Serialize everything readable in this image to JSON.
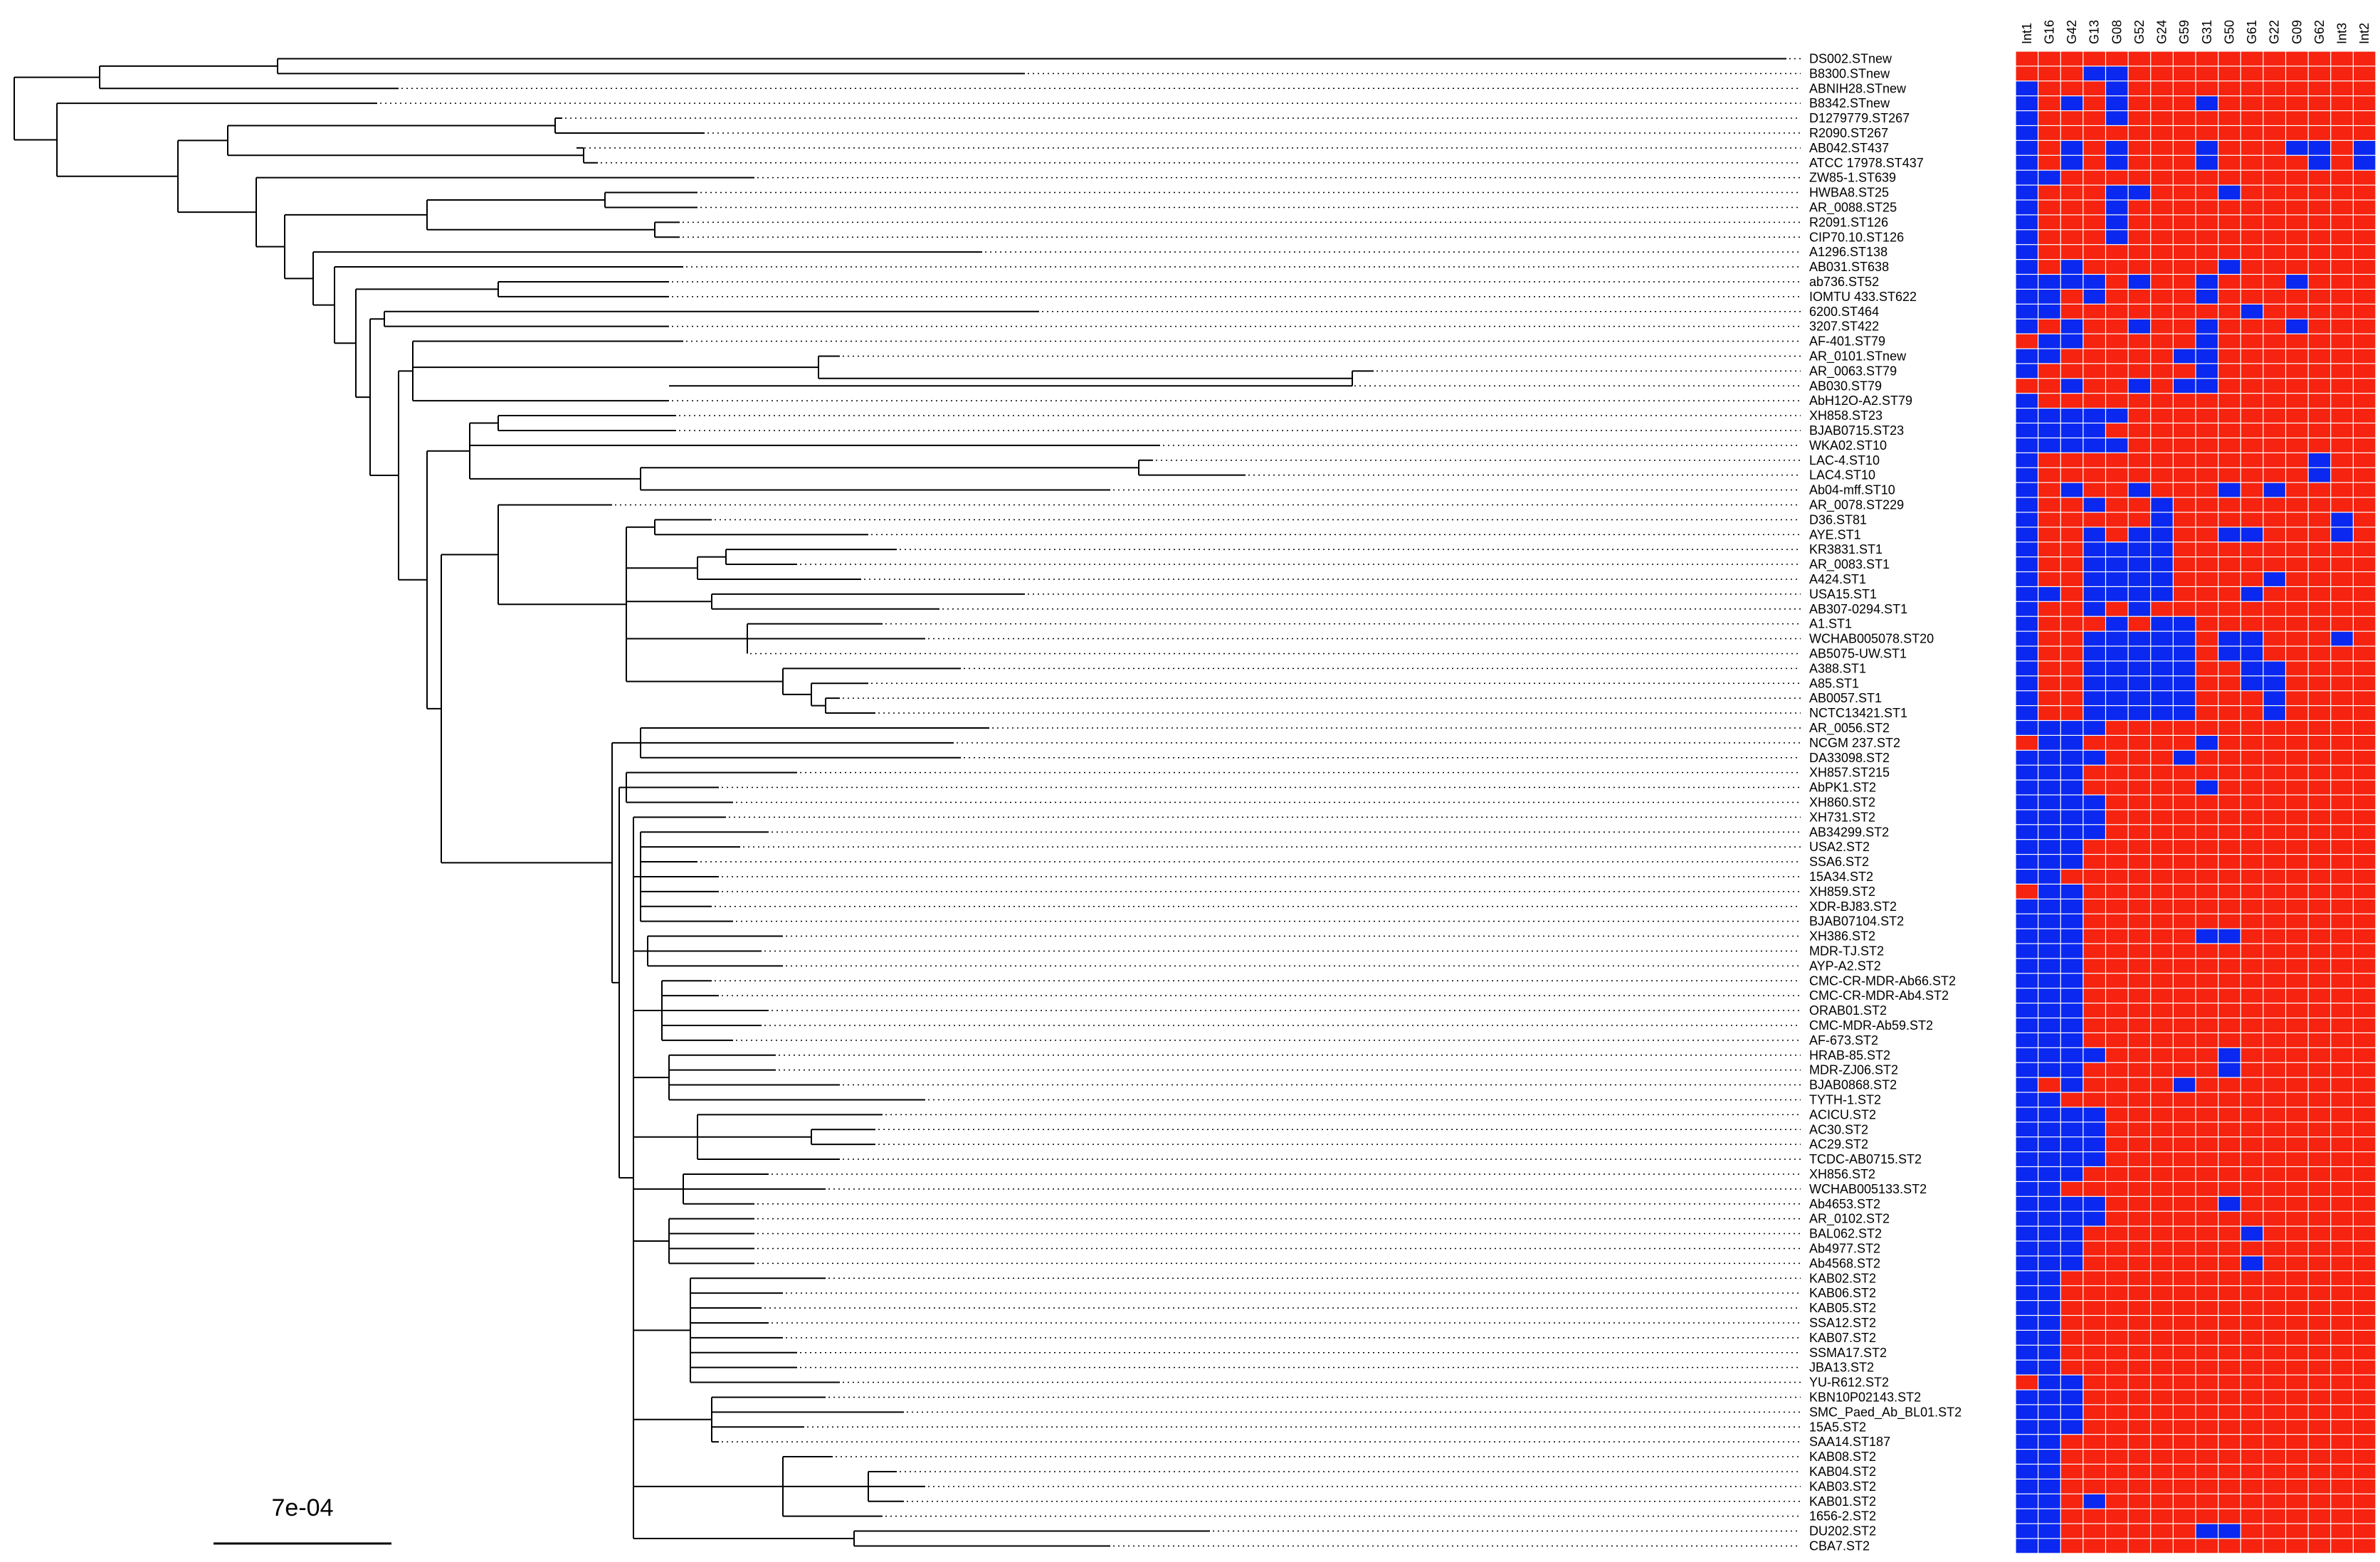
{
  "figure": {
    "type": "phylogenetic-tree-with-presence-heatmap",
    "scale_bar_label": "7e-04",
    "colors": {
      "present": "#0a28f0",
      "absent": "#f5230f",
      "grid": "#ffffff",
      "branch": "#000000"
    }
  },
  "columns": [
    "Int1",
    "G16",
    "G42",
    "G13",
    "G08",
    "G52",
    "G24",
    "G59",
    "G31",
    "G50",
    "G61",
    "G22",
    "G09",
    "G62",
    "Int3",
    "Int2"
  ],
  "taxa": [
    "DS002.STnew",
    "B8300.STnew",
    "ABNIH28.STnew",
    "B8342.STnew",
    "D1279779.ST267",
    "R2090.ST267",
    "AB042.ST437",
    "ATCC 17978.ST437",
    "ZW85-1.ST639",
    "HWBA8.ST25",
    "AR_0088.ST25",
    "R2091.ST126",
    "CIP70.10.ST126",
    "A1296.ST138",
    "AB031.ST638",
    "ab736.ST52",
    "IOMTU 433.ST622",
    "6200.ST464",
    "3207.ST422",
    "AF-401.ST79",
    "AR_0101.STnew",
    "AR_0063.ST79",
    "AB030.ST79",
    "AbH12O-A2.ST79",
    "XH858.ST23",
    "BJAB0715.ST23",
    "WKA02.ST10",
    "LAC-4.ST10",
    "LAC4.ST10",
    "Ab04-mff.ST10",
    "AR_0078.ST229",
    "D36.ST81",
    "AYE.ST1",
    "KR3831.ST1",
    "AR_0083.ST1",
    "A424.ST1",
    "USA15.ST1",
    "AB307-0294.ST1",
    "A1.ST1",
    "WCHAB005078.ST20",
    "AB5075-UW.ST1",
    "A388.ST1",
    "A85.ST1",
    "AB0057.ST1",
    "NCTC13421.ST1",
    "AR_0056.ST2",
    "NCGM 237.ST2",
    "DA33098.ST2",
    "XH857.ST215",
    "AbPK1.ST2",
    "XH860.ST2",
    "XH731.ST2",
    "AB34299.ST2",
    "USA2.ST2",
    "SSA6.ST2",
    "15A34.ST2",
    "XH859.ST2",
    "XDR-BJ83.ST2",
    "BJAB07104.ST2",
    "XH386.ST2",
    "MDR-TJ.ST2",
    "AYP-A2.ST2",
    "CMC-CR-MDR-Ab66.ST2",
    "CMC-CR-MDR-Ab4.ST2",
    "ORAB01.ST2",
    "CMC-MDR-Ab59.ST2",
    "AF-673.ST2",
    "HRAB-85.ST2",
    "MDR-ZJ06.ST2",
    "BJAB0868.ST2",
    "TYTH-1.ST2",
    "ACICU.ST2",
    "AC30.ST2",
    "AC29.ST2",
    "TCDC-AB0715.ST2",
    "XH856.ST2",
    "WCHAB005133.ST2",
    "Ab4653.ST2",
    "AR_0102.ST2",
    "BAL062.ST2",
    "Ab4977.ST2",
    "Ab4568.ST2",
    "KAB02.ST2",
    "KAB06.ST2",
    "KAB05.ST2",
    "SSA12.ST2",
    "KAB07.ST2",
    "SSMA17.ST2",
    "JBA13.ST2",
    "YU-R612.ST2",
    "KBN10P02143.ST2",
    "SMC_Paed_Ab_BL01.ST2",
    "15A5.ST2",
    "SAA14.ST187",
    "KAB08.ST2",
    "KAB04.ST2",
    "KAB03.ST2",
    "KAB01.ST2",
    "1656-2.ST2",
    "DU202.ST2",
    "CBA7.ST2"
  ],
  "presence_matrix": [
    [
      0,
      0,
      0,
      0,
      0,
      0,
      0,
      0,
      0,
      0,
      0,
      0,
      0,
      0,
      0,
      0
    ],
    [
      0,
      0,
      0,
      1,
      1,
      0,
      0,
      0,
      0,
      0,
      0,
      0,
      0,
      0,
      0,
      0
    ],
    [
      1,
      0,
      0,
      0,
      1,
      0,
      0,
      0,
      0,
      0,
      0,
      0,
      0,
      0,
      0,
      0
    ],
    [
      1,
      0,
      1,
      0,
      1,
      0,
      0,
      0,
      1,
      0,
      0,
      0,
      0,
      0,
      0,
      0
    ],
    [
      1,
      0,
      0,
      0,
      1,
      0,
      0,
      0,
      0,
      0,
      0,
      0,
      0,
      0,
      0,
      0
    ],
    [
      1,
      0,
      0,
      0,
      0,
      0,
      0,
      0,
      0,
      0,
      0,
      0,
      0,
      0,
      0,
      0
    ],
    [
      1,
      0,
      1,
      0,
      1,
      0,
      0,
      0,
      1,
      0,
      0,
      0,
      1,
      1,
      0,
      1
    ],
    [
      1,
      0,
      1,
      0,
      1,
      0,
      0,
      0,
      1,
      0,
      0,
      0,
      0,
      1,
      0,
      1
    ],
    [
      1,
      1,
      0,
      0,
      0,
      0,
      0,
      0,
      0,
      0,
      0,
      0,
      0,
      0,
      0,
      0
    ],
    [
      1,
      0,
      0,
      0,
      1,
      1,
      0,
      0,
      0,
      1,
      0,
      0,
      0,
      0,
      0,
      0
    ],
    [
      1,
      0,
      0,
      0,
      1,
      0,
      0,
      0,
      0,
      0,
      0,
      0,
      0,
      0,
      0,
      0
    ],
    [
      1,
      0,
      0,
      0,
      1,
      0,
      0,
      0,
      0,
      0,
      0,
      0,
      0,
      0,
      0,
      0
    ],
    [
      1,
      0,
      0,
      0,
      1,
      0,
      0,
      0,
      0,
      0,
      0,
      0,
      0,
      0,
      0,
      0
    ],
    [
      1,
      0,
      0,
      0,
      0,
      0,
      0,
      0,
      0,
      0,
      0,
      0,
      0,
      0,
      0,
      0
    ],
    [
      1,
      0,
      1,
      0,
      0,
      0,
      0,
      0,
      0,
      1,
      0,
      0,
      0,
      0,
      0,
      0
    ],
    [
      1,
      1,
      1,
      1,
      0,
      1,
      0,
      0,
      1,
      0,
      0,
      0,
      1,
      0,
      0,
      0
    ],
    [
      1,
      1,
      0,
      1,
      0,
      0,
      0,
      0,
      1,
      0,
      0,
      0,
      0,
      0,
      0,
      0
    ],
    [
      1,
      1,
      0,
      0,
      0,
      0,
      0,
      0,
      0,
      0,
      1,
      0,
      0,
      0,
      0,
      0
    ],
    [
      1,
      0,
      1,
      0,
      0,
      1,
      0,
      0,
      1,
      0,
      0,
      0,
      1,
      0,
      0,
      0
    ],
    [
      0,
      1,
      1,
      0,
      0,
      0,
      0,
      0,
      1,
      0,
      0,
      0,
      0,
      0,
      0,
      0
    ],
    [
      1,
      1,
      0,
      0,
      0,
      0,
      0,
      1,
      1,
      0,
      0,
      0,
      0,
      0,
      0,
      0
    ],
    [
      1,
      0,
      0,
      0,
      0,
      0,
      0,
      0,
      1,
      0,
      0,
      0,
      0,
      0,
      0,
      0
    ],
    [
      0,
      0,
      1,
      0,
      0,
      1,
      0,
      1,
      1,
      0,
      0,
      0,
      0,
      0,
      0,
      0
    ],
    [
      1,
      0,
      0,
      0,
      0,
      0,
      0,
      0,
      0,
      0,
      0,
      0,
      0,
      0,
      0,
      0
    ],
    [
      1,
      1,
      1,
      1,
      1,
      0,
      0,
      0,
      0,
      0,
      0,
      0,
      0,
      0,
      0,
      0
    ],
    [
      1,
      1,
      1,
      1,
      0,
      0,
      0,
      0,
      0,
      0,
      0,
      0,
      0,
      0,
      0,
      0
    ],
    [
      1,
      1,
      1,
      1,
      1,
      0,
      0,
      0,
      0,
      0,
      0,
      0,
      0,
      0,
      0,
      0
    ],
    [
      1,
      0,
      0,
      0,
      0,
      0,
      0,
      0,
      0,
      0,
      0,
      0,
      0,
      1,
      0,
      0
    ],
    [
      1,
      0,
      0,
      0,
      0,
      0,
      0,
      0,
      0,
      0,
      0,
      0,
      0,
      1,
      0,
      0
    ],
    [
      1,
      0,
      1,
      0,
      0,
      1,
      0,
      0,
      0,
      1,
      0,
      1,
      0,
      0,
      0,
      0
    ],
    [
      1,
      0,
      0,
      1,
      0,
      0,
      1,
      0,
      0,
      0,
      0,
      0,
      0,
      0,
      0,
      0
    ],
    [
      1,
      0,
      0,
      0,
      0,
      0,
      1,
      0,
      0,
      0,
      0,
      0,
      0,
      0,
      1,
      0
    ],
    [
      1,
      0,
      0,
      1,
      0,
      1,
      1,
      0,
      0,
      1,
      1,
      0,
      0,
      0,
      1,
      0
    ],
    [
      1,
      0,
      0,
      1,
      1,
      1,
      1,
      0,
      0,
      0,
      0,
      0,
      0,
      0,
      0,
      0
    ],
    [
      1,
      0,
      0,
      1,
      1,
      1,
      1,
      0,
      0,
      0,
      0,
      0,
      0,
      0,
      0,
      0
    ],
    [
      1,
      0,
      0,
      1,
      1,
      1,
      1,
      0,
      0,
      0,
      0,
      1,
      0,
      0,
      0,
      0
    ],
    [
      1,
      1,
      0,
      1,
      1,
      1,
      1,
      0,
      0,
      0,
      1,
      0,
      0,
      0,
      0,
      0
    ],
    [
      1,
      0,
      0,
      1,
      0,
      1,
      0,
      0,
      0,
      0,
      0,
      0,
      0,
      0,
      0,
      0
    ],
    [
      1,
      0,
      0,
      0,
      1,
      0,
      1,
      1,
      0,
      0,
      0,
      0,
      0,
      0,
      0,
      0
    ],
    [
      1,
      0,
      0,
      1,
      1,
      1,
      1,
      1,
      0,
      1,
      1,
      0,
      0,
      0,
      1,
      0
    ],
    [
      1,
      0,
      0,
      1,
      1,
      1,
      1,
      1,
      0,
      1,
      1,
      0,
      0,
      0,
      0,
      0
    ],
    [
      1,
      0,
      0,
      1,
      1,
      1,
      1,
      1,
      0,
      0,
      1,
      1,
      0,
      0,
      0,
      0
    ],
    [
      1,
      0,
      0,
      1,
      1,
      1,
      1,
      1,
      0,
      0,
      1,
      1,
      0,
      0,
      0,
      0
    ],
    [
      1,
      0,
      0,
      1,
      1,
      1,
      1,
      1,
      0,
      0,
      0,
      1,
      0,
      0,
      0,
      0
    ],
    [
      1,
      0,
      0,
      1,
      1,
      1,
      1,
      1,
      0,
      0,
      0,
      1,
      0,
      0,
      0,
      0
    ],
    [
      1,
      1,
      1,
      1,
      0,
      0,
      0,
      0,
      0,
      0,
      0,
      0,
      0,
      0,
      0,
      0
    ],
    [
      0,
      1,
      1,
      0,
      0,
      0,
      0,
      0,
      1,
      0,
      0,
      0,
      0,
      0,
      0,
      0
    ],
    [
      1,
      1,
      1,
      1,
      0,
      0,
      0,
      1,
      0,
      0,
      0,
      0,
      0,
      0,
      0,
      0
    ],
    [
      1,
      1,
      1,
      0,
      0,
      0,
      0,
      0,
      0,
      0,
      0,
      0,
      0,
      0,
      0,
      0
    ],
    [
      1,
      1,
      1,
      0,
      0,
      0,
      0,
      0,
      1,
      0,
      0,
      0,
      0,
      0,
      0,
      0
    ],
    [
      1,
      1,
      1,
      1,
      0,
      0,
      0,
      0,
      0,
      0,
      0,
      0,
      0,
      0,
      0,
      0
    ],
    [
      1,
      1,
      1,
      1,
      0,
      0,
      0,
      0,
      0,
      0,
      0,
      0,
      0,
      0,
      0,
      0
    ],
    [
      1,
      1,
      1,
      1,
      0,
      0,
      0,
      0,
      0,
      0,
      0,
      0,
      0,
      0,
      0,
      0
    ],
    [
      1,
      1,
      1,
      0,
      0,
      0,
      0,
      0,
      0,
      0,
      0,
      0,
      0,
      0,
      0,
      0
    ],
    [
      1,
      1,
      1,
      0,
      0,
      0,
      0,
      0,
      0,
      0,
      0,
      0,
      0,
      0,
      0,
      0
    ],
    [
      1,
      1,
      0,
      0,
      0,
      0,
      0,
      0,
      0,
      0,
      0,
      0,
      0,
      0,
      0,
      0
    ],
    [
      0,
      1,
      1,
      0,
      0,
      0,
      0,
      0,
      0,
      0,
      0,
      0,
      0,
      0,
      0,
      0
    ],
    [
      1,
      1,
      1,
      0,
      0,
      0,
      0,
      0,
      0,
      0,
      0,
      0,
      0,
      0,
      0,
      0
    ],
    [
      1,
      1,
      1,
      0,
      0,
      0,
      0,
      0,
      0,
      0,
      0,
      0,
      0,
      0,
      0,
      0
    ],
    [
      1,
      1,
      1,
      0,
      0,
      0,
      0,
      0,
      1,
      1,
      0,
      0,
      0,
      0,
      0,
      0
    ],
    [
      1,
      1,
      1,
      0,
      0,
      0,
      0,
      0,
      0,
      0,
      0,
      0,
      0,
      0,
      0,
      0
    ],
    [
      1,
      1,
      1,
      0,
      0,
      0,
      0,
      0,
      0,
      0,
      0,
      0,
      0,
      0,
      0,
      0
    ],
    [
      1,
      1,
      1,
      0,
      0,
      0,
      0,
      0,
      0,
      0,
      0,
      0,
      0,
      0,
      0,
      0
    ],
    [
      1,
      1,
      1,
      0,
      0,
      0,
      0,
      0,
      0,
      0,
      0,
      0,
      0,
      0,
      0,
      0
    ],
    [
      1,
      1,
      1,
      0,
      0,
      0,
      0,
      0,
      0,
      0,
      0,
      0,
      0,
      0,
      0,
      0
    ],
    [
      1,
      1,
      1,
      0,
      0,
      0,
      0,
      0,
      0,
      0,
      0,
      0,
      0,
      0,
      0,
      0
    ],
    [
      1,
      1,
      1,
      0,
      0,
      0,
      0,
      0,
      0,
      0,
      0,
      0,
      0,
      0,
      0,
      0
    ],
    [
      1,
      1,
      1,
      1,
      0,
      0,
      0,
      0,
      0,
      1,
      0,
      0,
      0,
      0,
      0,
      0
    ],
    [
      1,
      1,
      1,
      0,
      0,
      0,
      0,
      0,
      0,
      1,
      0,
      0,
      0,
      0,
      0,
      0
    ],
    [
      1,
      0,
      1,
      0,
      0,
      0,
      0,
      1,
      0,
      0,
      0,
      0,
      0,
      0,
      0,
      0
    ],
    [
      1,
      1,
      0,
      0,
      0,
      0,
      0,
      0,
      0,
      0,
      0,
      0,
      0,
      0,
      0,
      0
    ],
    [
      1,
      1,
      1,
      1,
      0,
      0,
      0,
      0,
      0,
      0,
      0,
      0,
      0,
      0,
      0,
      0
    ],
    [
      1,
      1,
      1,
      1,
      0,
      0,
      0,
      0,
      0,
      0,
      0,
      0,
      0,
      0,
      0,
      0
    ],
    [
      1,
      1,
      1,
      1,
      0,
      0,
      0,
      0,
      0,
      0,
      0,
      0,
      0,
      0,
      0,
      0
    ],
    [
      1,
      1,
      1,
      1,
      0,
      0,
      0,
      0,
      0,
      0,
      0,
      0,
      0,
      0,
      0,
      0
    ],
    [
      1,
      1,
      1,
      0,
      0,
      0,
      0,
      0,
      0,
      0,
      0,
      0,
      0,
      0,
      0,
      0
    ],
    [
      1,
      1,
      0,
      0,
      0,
      0,
      0,
      0,
      0,
      0,
      0,
      0,
      0,
      0,
      0,
      0
    ],
    [
      1,
      1,
      1,
      1,
      0,
      0,
      0,
      0,
      0,
      1,
      0,
      0,
      0,
      0,
      0,
      0
    ],
    [
      1,
      1,
      1,
      1,
      0,
      0,
      0,
      0,
      0,
      0,
      0,
      0,
      0,
      0,
      0,
      0
    ],
    [
      1,
      1,
      1,
      0,
      0,
      0,
      0,
      0,
      0,
      0,
      1,
      0,
      0,
      0,
      0,
      0
    ],
    [
      1,
      1,
      1,
      0,
      0,
      0,
      0,
      0,
      0,
      0,
      0,
      0,
      0,
      0,
      0,
      0
    ],
    [
      1,
      1,
      1,
      0,
      0,
      0,
      0,
      0,
      0,
      0,
      1,
      0,
      0,
      0,
      0,
      0
    ],
    [
      1,
      1,
      0,
      0,
      0,
      0,
      0,
      0,
      0,
      0,
      0,
      0,
      0,
      0,
      0,
      0
    ],
    [
      1,
      1,
      0,
      0,
      0,
      0,
      0,
      0,
      0,
      0,
      0,
      0,
      0,
      0,
      0,
      0
    ],
    [
      1,
      1,
      0,
      0,
      0,
      0,
      0,
      0,
      0,
      0,
      0,
      0,
      0,
      0,
      0,
      0
    ],
    [
      1,
      1,
      0,
      0,
      0,
      0,
      0,
      0,
      0,
      0,
      0,
      0,
      0,
      0,
      0,
      0
    ],
    [
      1,
      1,
      0,
      0,
      0,
      0,
      0,
      0,
      0,
      0,
      0,
      0,
      0,
      0,
      0,
      0
    ],
    [
      1,
      1,
      0,
      0,
      0,
      0,
      0,
      0,
      0,
      0,
      0,
      0,
      0,
      0,
      0,
      0
    ],
    [
      1,
      1,
      0,
      0,
      0,
      0,
      0,
      0,
      0,
      0,
      0,
      0,
      0,
      0,
      0,
      0
    ],
    [
      0,
      1,
      1,
      0,
      0,
      0,
      0,
      0,
      0,
      0,
      0,
      0,
      0,
      0,
      0,
      0
    ],
    [
      1,
      1,
      1,
      0,
      0,
      0,
      0,
      0,
      0,
      0,
      0,
      0,
      0,
      0,
      0,
      0
    ],
    [
      1,
      1,
      1,
      0,
      0,
      0,
      0,
      0,
      0,
      0,
      0,
      0,
      0,
      0,
      0,
      0
    ],
    [
      1,
      1,
      1,
      0,
      0,
      0,
      0,
      0,
      0,
      0,
      0,
      0,
      0,
      0,
      0,
      0
    ],
    [
      1,
      1,
      0,
      0,
      0,
      0,
      0,
      0,
      0,
      0,
      0,
      0,
      0,
      0,
      0,
      0
    ],
    [
      1,
      1,
      0,
      0,
      0,
      0,
      0,
      0,
      0,
      0,
      0,
      0,
      0,
      0,
      0,
      0
    ],
    [
      1,
      1,
      0,
      0,
      0,
      0,
      0,
      0,
      0,
      0,
      0,
      0,
      0,
      0,
      0,
      0
    ],
    [
      1,
      1,
      0,
      0,
      0,
      0,
      0,
      0,
      0,
      0,
      0,
      0,
      0,
      0,
      0,
      0
    ],
    [
      1,
      1,
      0,
      1,
      0,
      0,
      0,
      0,
      0,
      0,
      0,
      0,
      0,
      0,
      0,
      0
    ],
    [
      1,
      1,
      0,
      0,
      0,
      0,
      0,
      0,
      0,
      0,
      0,
      0,
      0,
      0,
      0,
      0
    ],
    [
      1,
      1,
      0,
      0,
      0,
      0,
      0,
      0,
      1,
      1,
      0,
      0,
      0,
      0,
      0,
      0
    ],
    [
      1,
      1,
      0,
      0,
      0,
      0,
      0,
      0,
      0,
      0,
      0,
      0,
      0,
      0,
      0,
      0
    ]
  ]
}
